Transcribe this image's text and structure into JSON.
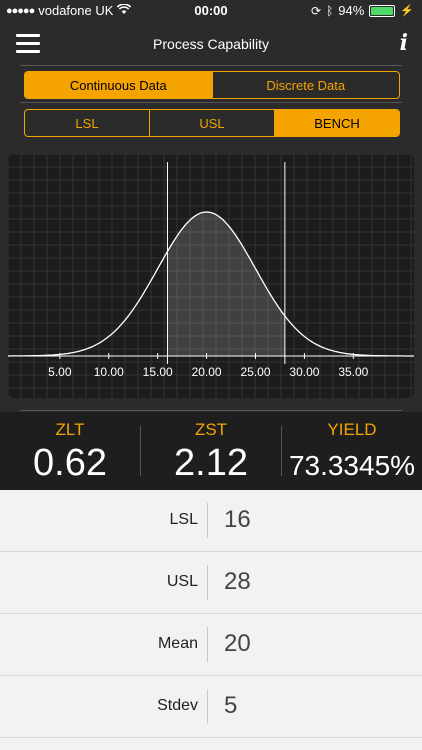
{
  "status": {
    "carrier": "vodafone UK",
    "time": "00:00",
    "battery": "94%"
  },
  "nav": {
    "title": "Process Capability",
    "info": "i"
  },
  "data_type_tabs": [
    {
      "label": "Continuous Data",
      "active": true
    },
    {
      "label": "Discrete Data",
      "active": false
    }
  ],
  "limit_tabs": [
    {
      "label": "LSL",
      "active": false
    },
    {
      "label": "USL",
      "active": false
    },
    {
      "label": "BENCH",
      "active": true
    }
  ],
  "chart_data": {
    "type": "area",
    "distribution": "normal",
    "mean": 20,
    "stdev": 5,
    "lsl": 16,
    "usl": 28,
    "xlim": [
      -0.3,
      41.2
    ],
    "x_ticks": [
      "5.00",
      "10.00",
      "15.00",
      "20.00",
      "25.00",
      "30.00",
      "35.00"
    ],
    "x_tick_values": [
      5,
      10,
      15,
      20,
      25,
      30,
      35
    ],
    "title": "",
    "xlabel": "",
    "ylabel": "",
    "grid": true
  },
  "stats": {
    "zlt": {
      "label": "ZLT",
      "value": "0.62"
    },
    "zst": {
      "label": "ZST",
      "value": "2.12"
    },
    "yield": {
      "label": "YIELD",
      "value": "73.3345%"
    }
  },
  "inputs": [
    {
      "label": "LSL",
      "value": "16"
    },
    {
      "label": "USL",
      "value": "28"
    },
    {
      "label": "Mean",
      "value": "20"
    },
    {
      "label": "Stdev",
      "value": "5"
    }
  ],
  "colors": {
    "accent": "#f5a300",
    "background": "#2b2b2b",
    "form_bg": "#f2f2f2"
  }
}
